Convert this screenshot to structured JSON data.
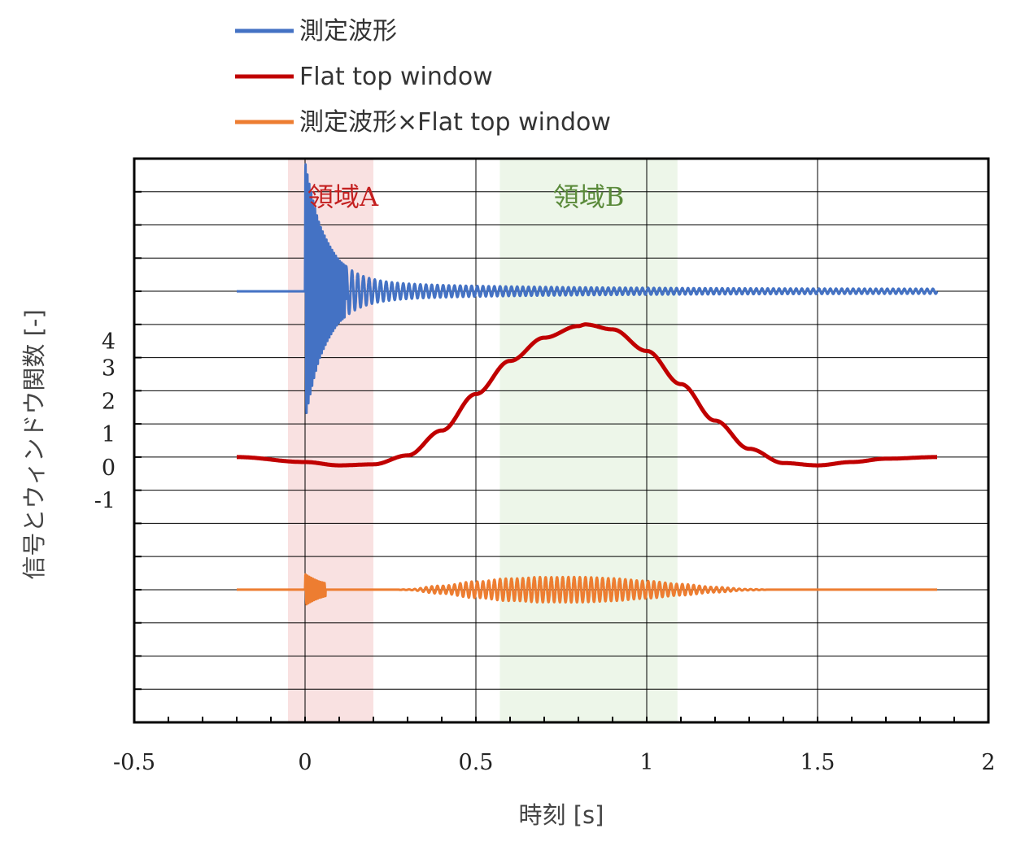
{
  "chart_data": {
    "type": "line",
    "xlabel": "時刻 [s]",
    "ylabel": "信号とウィンドウ関数 [-]",
    "xlim": [
      -0.5,
      2
    ],
    "ylim": [
      -8,
      9
    ],
    "x_ticks": [
      "-0.5",
      "0",
      "0.5",
      "1",
      "1.5",
      "2"
    ],
    "y_tick_labels": [
      "4",
      "3",
      "2",
      "1",
      "0",
      "-1"
    ],
    "grid": true,
    "legend_position": "top-left, above plot",
    "regions": [
      {
        "label": "領域A",
        "x_range": [
          -0.05,
          0.2
        ],
        "fill": "#f9e1e1",
        "text_color": "#c42020"
      },
      {
        "label": "領域B",
        "x_range": [
          0.57,
          1.09
        ],
        "fill": "#edf6e9",
        "text_color": "#5a8a3a"
      }
    ],
    "series": [
      {
        "name": "測定波形",
        "color": "#4472c4",
        "baseline": 5,
        "description_points": {
          "x": [
            -0.2,
            0.0,
            0.005,
            0.2,
            0.5,
            1.0,
            1.85
          ],
          "y": [
            5,
            5,
            8.5,
            5.4,
            5.15,
            5.1,
            5.05
          ]
        }
      },
      {
        "name": "Flat top window",
        "color": "#c00000",
        "x": [
          -0.2,
          0.0,
          0.1,
          0.2,
          0.3,
          0.4,
          0.5,
          0.6,
          0.7,
          0.8,
          0.82,
          0.9,
          1.0,
          1.1,
          1.2,
          1.3,
          1.4,
          1.5,
          1.6,
          1.7,
          1.85
        ],
        "y": [
          0.0,
          -0.15,
          -0.25,
          -0.22,
          0.05,
          0.8,
          1.9,
          2.9,
          3.6,
          3.95,
          4.0,
          3.85,
          3.2,
          2.2,
          1.1,
          0.25,
          -0.18,
          -0.25,
          -0.15,
          -0.05,
          0.0
        ]
      },
      {
        "name": "測定波形×Flat top window",
        "color": "#ed7d31",
        "baseline": -4,
        "description_points": {
          "x": [
            -0.2,
            0.0,
            0.005,
            0.3,
            0.55,
            0.82,
            1.1,
            1.3,
            1.85
          ],
          "y": [
            -4,
            -4,
            -3.4,
            -4.05,
            -4.1,
            -4.45,
            -4.15,
            -4.05,
            -4
          ]
        }
      }
    ]
  }
}
